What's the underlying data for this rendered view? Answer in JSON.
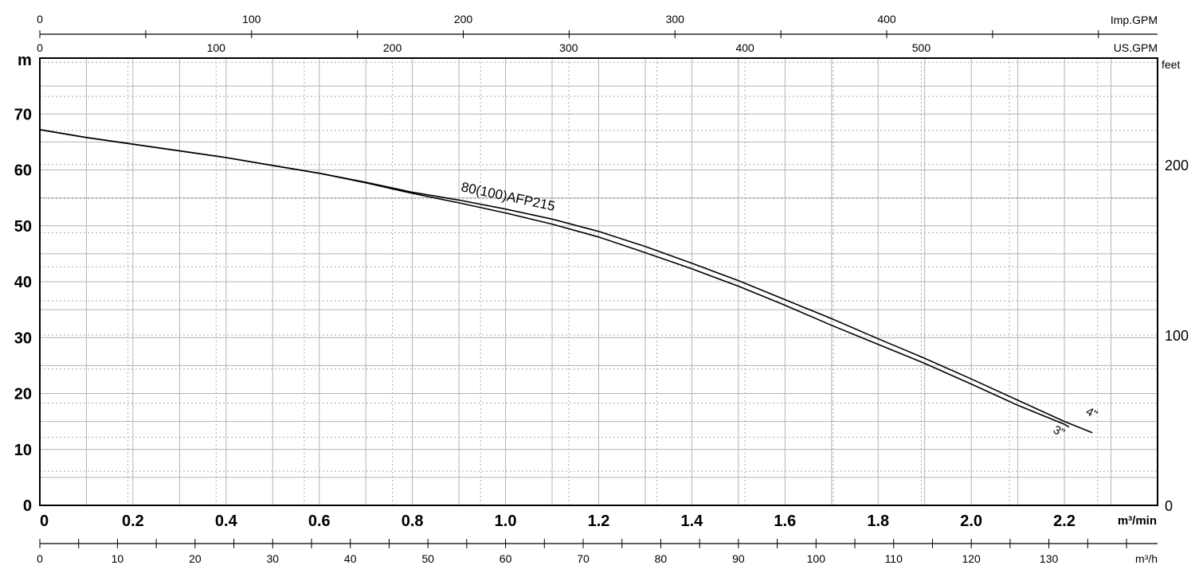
{
  "chart_data": {
    "type": "line",
    "title": "",
    "xlabel": "m³/min",
    "ylabel": "m",
    "xlim": [
      0,
      2.4
    ],
    "ylim": [
      0,
      80
    ],
    "x_ticks": [
      "0",
      "0.2",
      "0.4",
      "0.6",
      "0.8",
      "1.0",
      "1.2",
      "1.4",
      "1.6",
      "1.8",
      "2.0",
      "2.2"
    ],
    "y_ticks": [
      "0",
      "10",
      "20",
      "30",
      "40",
      "50",
      "60",
      "70"
    ],
    "secondary_axes": {
      "right_label": "feet",
      "right_ticks": [
        "0",
        "100",
        "200"
      ],
      "top_imp_label": "Imp.GPM",
      "top_imp_ticks": [
        "0",
        "100",
        "200",
        "300",
        "400"
      ],
      "top_us_label": "US.GPM",
      "top_us_ticks": [
        "0",
        "100",
        "200",
        "300",
        "400",
        "500"
      ],
      "bottom_label": "m³/h",
      "bottom_ticks": [
        "0",
        "10",
        "20",
        "30",
        "40",
        "50",
        "60",
        "70",
        "80",
        "90",
        "100",
        "110",
        "120",
        "130"
      ]
    },
    "model_label": "80(100)AFP215",
    "grid": true,
    "series": [
      {
        "name": "4\"",
        "x": [
          0,
          0.1,
          0.2,
          0.3,
          0.4,
          0.5,
          0.6,
          0.7,
          0.8,
          0.9,
          1.0,
          1.1,
          1.2,
          1.3,
          1.4,
          1.5,
          1.6,
          1.7,
          1.8,
          1.9,
          2.0,
          2.1,
          2.2,
          2.26
        ],
        "y": [
          67.2,
          65.8,
          64.6,
          63.4,
          62.2,
          60.8,
          59.4,
          57.8,
          56.0,
          54.6,
          53.0,
          51.2,
          49.0,
          46.3,
          43.3,
          40.2,
          36.8,
          33.4,
          29.8,
          26.3,
          22.6,
          18.8,
          15.0,
          13.0
        ]
      },
      {
        "name": "3\"",
        "x": [
          0,
          0.1,
          0.2,
          0.3,
          0.4,
          0.5,
          0.6,
          0.7,
          0.8,
          0.9,
          1.0,
          1.1,
          1.2,
          1.3,
          1.4,
          1.5,
          1.6,
          1.7,
          1.8,
          1.9,
          2.0,
          2.1,
          2.2,
          2.21
        ],
        "y": [
          67.2,
          65.8,
          64.6,
          63.4,
          62.2,
          60.8,
          59.4,
          57.7,
          55.8,
          54.1,
          52.3,
          50.3,
          48.0,
          45.2,
          42.3,
          39.2,
          35.8,
          32.2,
          28.8,
          25.4,
          21.7,
          17.9,
          14.5,
          14.0
        ]
      }
    ]
  }
}
